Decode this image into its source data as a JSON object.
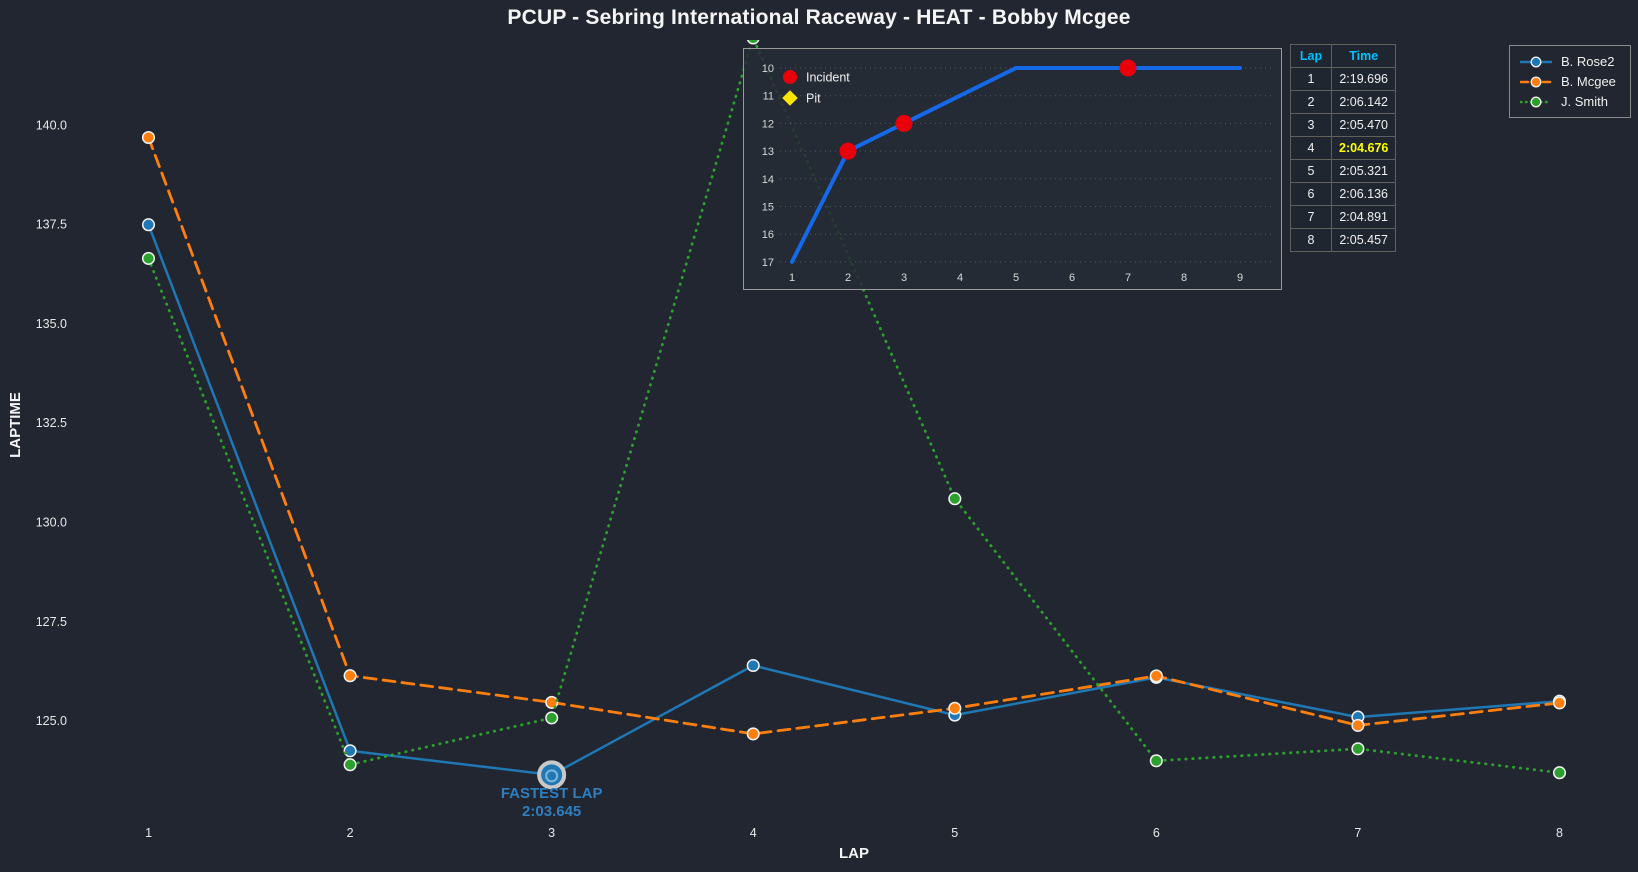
{
  "title": "PCUP - Sebring International Raceway - HEAT - Bobby Mcgee",
  "colors": {
    "background": "#212630",
    "tick_text": "#e8e8e8",
    "axis_label_text": "#f5f5f5",
    "blue": "#1f77b4",
    "orange": "#ff7f0e",
    "green": "#2ca02c",
    "inset_line_blue": "#1569e8",
    "incident_red": "#e8000b",
    "pit_yellow": "#ffe600",
    "table_header_cyan": "#00bfff",
    "fastest_yellow": "#ffff00",
    "annotation_blue": "#2e7fc0",
    "marker_edge": "#f2f2f2",
    "fastest_ring": "#c8c8c8",
    "grid_dotted": "rgba(255,255,255,0.22)"
  },
  "chart_data": [
    {
      "id": "laptime-chart",
      "type": "line",
      "title": "",
      "xlabel": "LAP",
      "ylabel": "LAPTIME",
      "x": [
        1,
        2,
        3,
        4,
        5,
        6,
        7,
        8
      ],
      "xticks": [
        1,
        2,
        3,
        4,
        5,
        6,
        7,
        8
      ],
      "yticks": [
        125.0,
        127.5,
        130.0,
        132.5,
        135.0,
        137.5,
        140.0
      ],
      "ytick_labels": [
        "125.0",
        "127.5",
        "130.0",
        "132.5",
        "135.0",
        "137.5",
        "140.0"
      ],
      "xlim": [
        0.65,
        8.35
      ],
      "ylim": [
        122.76,
        142.15
      ],
      "grid": false,
      "legend_position": "top-right",
      "series": [
        {
          "name": "B. Rose2",
          "color": "#1f77b4",
          "style": "solid",
          "values": [
            137.5,
            124.25,
            123.645,
            126.4,
            125.15,
            126.1,
            125.1,
            125.5
          ]
        },
        {
          "name": "B. Mcgee",
          "color": "#ff7f0e",
          "style": "dashed",
          "values": [
            139.696,
            126.142,
            125.47,
            124.676,
            125.321,
            126.136,
            124.891,
            125.457
          ]
        },
        {
          "name": "J. Smith",
          "color": "#2ca02c",
          "style": "dotted",
          "values": [
            136.65,
            123.9,
            125.08,
            142.2,
            130.6,
            124.0,
            124.3,
            123.7
          ]
        }
      ],
      "annotation": {
        "label": "FASTEST LAP",
        "value": "2:03.645",
        "series": "B. Rose2",
        "lap": 3,
        "y": 123.645
      }
    },
    {
      "id": "position-inset",
      "type": "line",
      "title": "",
      "xlabel": "",
      "ylabel": "",
      "x": [
        1,
        2,
        3,
        4,
        5,
        6,
        7,
        8,
        9
      ],
      "xticks": [
        1,
        2,
        3,
        4,
        5,
        6,
        7,
        8,
        9
      ],
      "yticks": [
        10,
        11,
        12,
        13,
        14,
        15,
        16,
        17
      ],
      "y_inverted": true,
      "grid": true,
      "series": [
        {
          "name": "Position",
          "color": "#1569e8",
          "style": "solid",
          "values": [
            17,
            13,
            12,
            11,
            10,
            10,
            10,
            10,
            10
          ]
        }
      ],
      "incidents": [
        {
          "lap": 2,
          "pos": 13
        },
        {
          "lap": 3,
          "pos": 12
        },
        {
          "lap": 7,
          "pos": 10
        }
      ],
      "pits": [],
      "legend": [
        {
          "label": "Incident",
          "marker": "circle",
          "color": "#e8000b"
        },
        {
          "label": "Pit",
          "marker": "diamond",
          "color": "#ffe600"
        }
      ]
    }
  ],
  "lap_table": {
    "headers": [
      "Lap",
      "Time"
    ],
    "rows": [
      {
        "lap": "1",
        "time": "2:19.696"
      },
      {
        "lap": "2",
        "time": "2:06.142"
      },
      {
        "lap": "3",
        "time": "2:05.470"
      },
      {
        "lap": "4",
        "time": "2:04.676"
      },
      {
        "lap": "5",
        "time": "2:05.321"
      },
      {
        "lap": "6",
        "time": "2:06.136"
      },
      {
        "lap": "7",
        "time": "2:04.891"
      },
      {
        "lap": "8",
        "time": "2:05.457"
      }
    ],
    "fastest_lap": "4"
  }
}
